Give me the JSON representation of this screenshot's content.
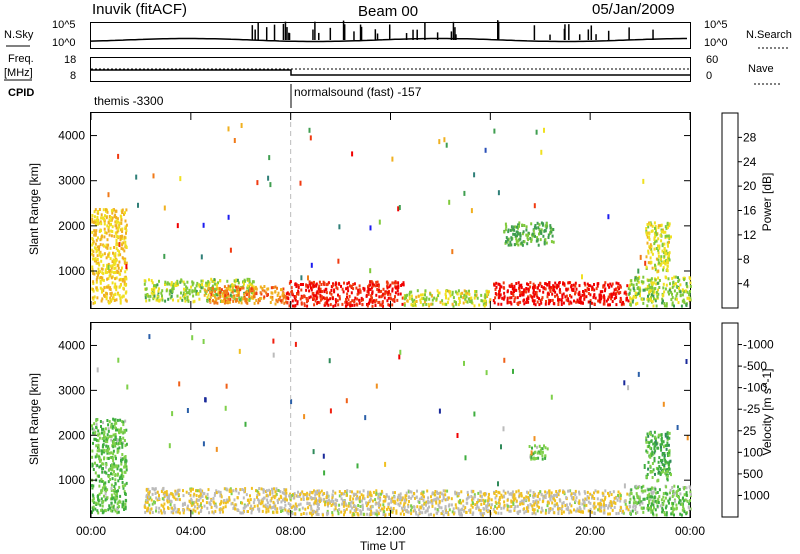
{
  "header": {
    "station": "Inuvik (fitACF)",
    "beam": "Beam 00",
    "date": "05/Jan/2009"
  },
  "top_panels": {
    "nsky_label": "N.Sky",
    "nsky_ticks": [
      "10^5",
      "10^0"
    ],
    "nsearch_label": "N.Search",
    "nsearch_ticks": [
      "10^5",
      "10^0"
    ],
    "freq_label": "Freq.",
    "freq_unit": "[MHz]",
    "freq_ticks": [
      "18",
      "8"
    ],
    "nave_label": "Nave",
    "nave_ticks": [
      "60",
      "0"
    ],
    "cpid_label": "CPID",
    "cpid_entries": [
      {
        "name": "themis -3300",
        "start_ut": 0
      },
      {
        "name": "normalsound (fast) -157",
        "start_ut": 8
      }
    ]
  },
  "chart_data": [
    {
      "type": "heatmap",
      "title": "",
      "xlabel": "Time UT",
      "ylabel": "Slant Range [km]",
      "x_ticks": [
        "00:00",
        "04:00",
        "08:00",
        "12:00",
        "16:00",
        "20:00",
        "00:00"
      ],
      "xlim": [
        0,
        24
      ],
      "y_ticks": [
        1000,
        2000,
        3000,
        4000
      ],
      "ylim": [
        180,
        4500
      ],
      "colorbar": {
        "label": "Power [dB]",
        "ticks": [
          "4",
          "8",
          "12",
          "16",
          "20",
          "24",
          "28"
        ],
        "range": [
          0,
          30
        ],
        "colors": [
          "#1c1cf0",
          "#2a4fb8",
          "#2f7f78",
          "#3f9e50",
          "#7fc93a",
          "#f0e020",
          "#f0b020",
          "#f07a18",
          "#f03a10",
          "#f00000"
        ]
      },
      "regions": [
        {
          "t0": 0.0,
          "t1": 1.4,
          "r0": 300,
          "r1": 2400,
          "level": 18
        },
        {
          "t0": 2.1,
          "t1": 6.5,
          "r0": 350,
          "r1": 850,
          "level": 14
        },
        {
          "t0": 4.5,
          "t1": 7.8,
          "r0": 300,
          "r1": 700,
          "level": 22
        },
        {
          "t0": 7.8,
          "t1": 12.5,
          "r0": 250,
          "r1": 800,
          "level": 27
        },
        {
          "t0": 12.5,
          "t1": 16.0,
          "r0": 250,
          "r1": 600,
          "level": 16
        },
        {
          "t0": 16.0,
          "t1": 21.5,
          "r0": 280,
          "r1": 780,
          "level": 28
        },
        {
          "t0": 21.5,
          "t1": 24.0,
          "r0": 250,
          "r1": 900,
          "level": 14
        },
        {
          "t0": 22.2,
          "t1": 23.2,
          "r0": 1000,
          "r1": 2100,
          "level": 16
        },
        {
          "t0": 16.5,
          "t1": 18.5,
          "r0": 1600,
          "r1": 2100,
          "level": 12
        }
      ]
    },
    {
      "type": "heatmap",
      "title": "",
      "xlabel": "Time UT",
      "ylabel": "Slant Range [km]",
      "x_ticks": [
        "00:00",
        "04:00",
        "08:00",
        "12:00",
        "16:00",
        "20:00",
        "00:00"
      ],
      "xlim": [
        0,
        24
      ],
      "y_ticks": [
        1000,
        2000,
        3000,
        4000
      ],
      "ylim": [
        180,
        4500
      ],
      "colorbar": {
        "label": "Velocity [m s^-1]",
        "ticks": [
          "1000",
          "500",
          "100",
          "25",
          "-25",
          "-100",
          "-500",
          "-1000"
        ],
        "range": [
          -1200,
          1200
        ],
        "colors": [
          "#1a2a9a",
          "#2a5fa8",
          "#2f8a5a",
          "#3fae3f",
          "#7fd04a",
          "#bbbbbb",
          "#f0c020",
          "#f09020",
          "#f06018",
          "#f02010",
          "#f00000"
        ]
      },
      "regions": [
        {
          "t0": 0.0,
          "t1": 1.4,
          "r0": 300,
          "r1": 2400,
          "level": -300
        },
        {
          "t0": 2.1,
          "t1": 7.8,
          "r0": 300,
          "r1": 850,
          "level": 80
        },
        {
          "t0": 7.8,
          "t1": 16.0,
          "r0": 250,
          "r1": 800,
          "level": 60
        },
        {
          "t0": 16.0,
          "t1": 21.5,
          "r0": 280,
          "r1": 800,
          "level": 90
        },
        {
          "t0": 21.5,
          "t1": 24.0,
          "r0": 250,
          "r1": 900,
          "level": -250
        },
        {
          "t0": 22.2,
          "t1": 23.2,
          "r0": 1000,
          "r1": 2100,
          "level": -400
        },
        {
          "t0": 17.5,
          "t1": 18.3,
          "r0": 1500,
          "r1": 1800,
          "level": -300
        }
      ]
    }
  ]
}
